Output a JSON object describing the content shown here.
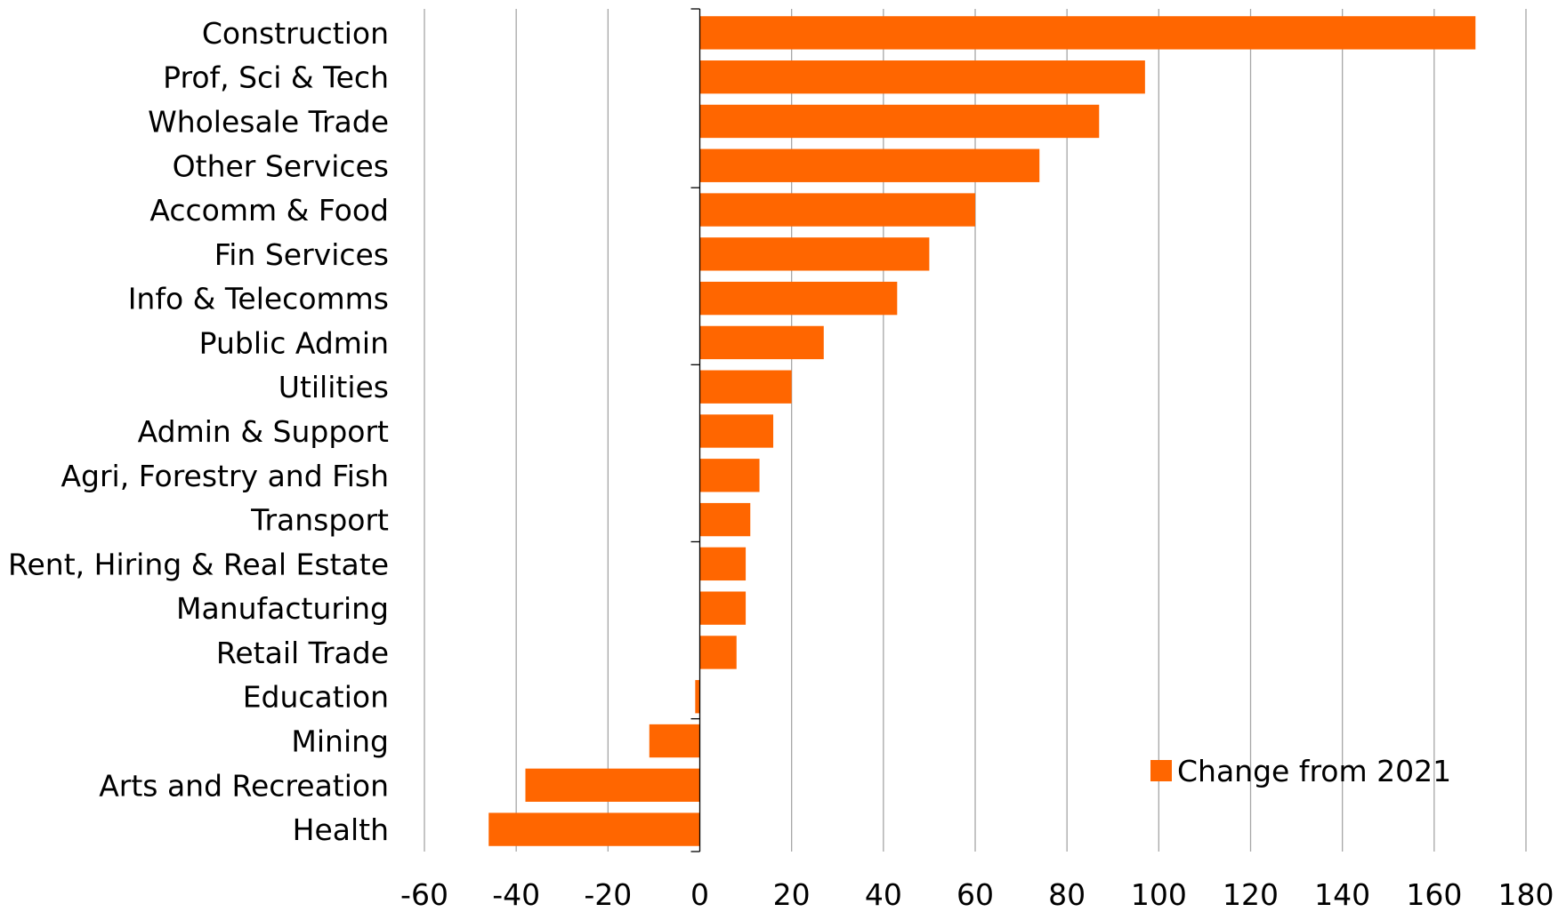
{
  "chart_data": {
    "type": "bar",
    "orientation": "horizontal",
    "categories": [
      "Construction",
      "Prof, Sci & Tech",
      "Wholesale Trade",
      "Other Services",
      "Accomm & Food",
      "Fin Services",
      "Info & Telecomms",
      "Public Admin",
      "Utilities",
      "Admin & Support",
      "Agri, Forestry and Fish",
      "Transport",
      "Rent, Hiring & Real Estate",
      "Manufacturing",
      "Retail Trade",
      "Education",
      "Mining",
      "Arts and Recreation",
      "Health"
    ],
    "series": [
      {
        "name": "Change from 2021",
        "color": "#ff6600",
        "values": [
          169,
          97,
          87,
          74,
          60,
          50,
          43,
          27,
          20,
          16,
          13,
          11,
          10,
          10,
          8,
          -1,
          -11,
          -38,
          -46
        ]
      }
    ],
    "xlim": [
      -60,
      180
    ],
    "xticks": [
      "-60",
      "-40",
      "-20",
      "0",
      "20",
      "40",
      "60",
      "80",
      "100",
      "120",
      "140",
      "160",
      "180"
    ],
    "grid": true,
    "legend_position": "bottom-right",
    "title": "",
    "xlabel": "",
    "ylabel": ""
  }
}
